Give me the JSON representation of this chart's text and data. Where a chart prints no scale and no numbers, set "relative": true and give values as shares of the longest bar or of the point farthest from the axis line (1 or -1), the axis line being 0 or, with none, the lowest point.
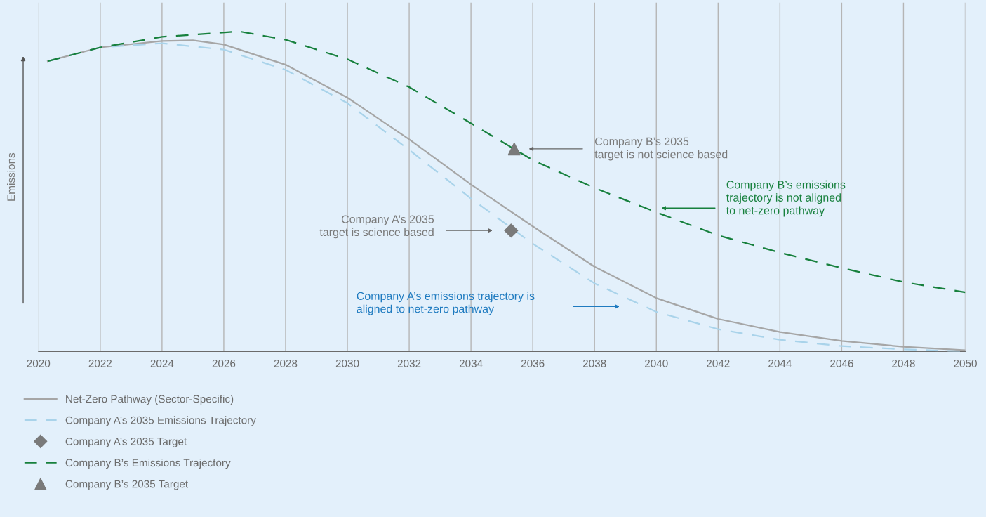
{
  "chart_data": {
    "type": "line",
    "relative": true,
    "ylabel": "Emissions",
    "xlim": [
      2020,
      2050
    ],
    "xticks": [
      2020,
      2022,
      2024,
      2026,
      2028,
      2030,
      2032,
      2034,
      2036,
      2038,
      2040,
      2042,
      2044,
      2046,
      2048,
      2050
    ],
    "grid": "x",
    "legend": "bottom",
    "series": [
      {
        "name": "Net-Zero Pathway (Sector-Specific)",
        "color": "#a6a6a6",
        "line_style": "solid",
        "x": [
          2020.3,
          2022,
          2024,
          2025,
          2026,
          2028,
          2030,
          2032,
          2034,
          2036,
          2038,
          2040,
          2042,
          2044,
          2046,
          2048,
          2050
        ],
        "values": [
          0.907,
          0.95,
          0.97,
          0.972,
          0.959,
          0.896,
          0.793,
          0.663,
          0.522,
          0.391,
          0.265,
          0.167,
          0.102,
          0.061,
          0.033,
          0.015,
          0.004
        ]
      },
      {
        "name": "Company A’s 2035 Emissions Trajectory",
        "color": "#a9d3ea",
        "line_style": "dashed",
        "x": [
          2020.3,
          2022,
          2024,
          2026,
          2028,
          2030,
          2032,
          2034,
          2036,
          2038,
          2040,
          2042,
          2044,
          2046,
          2048,
          2050
        ],
        "values": [
          0.907,
          0.95,
          0.963,
          0.943,
          0.88,
          0.776,
          0.63,
          0.478,
          0.337,
          0.213,
          0.124,
          0.07,
          0.037,
          0.017,
          0.007,
          0.0
        ]
      },
      {
        "name": "Company A’s 2035 Target",
        "type": "scatter",
        "marker": "diamond",
        "color": "#7a7a7a",
        "x": [
          2035.3
        ],
        "values": [
          0.378
        ]
      },
      {
        "name": "Company B’s Emissions Trajectory",
        "color": "#17803d",
        "line_style": "dashed",
        "x": [
          2020.3,
          2022,
          2024,
          2026.5,
          2028,
          2030,
          2032,
          2034,
          2036,
          2038,
          2040,
          2042,
          2044,
          2046,
          2048,
          2050
        ],
        "values": [
          0.907,
          0.95,
          0.983,
          1.0,
          0.974,
          0.913,
          0.826,
          0.713,
          0.598,
          0.511,
          0.435,
          0.363,
          0.309,
          0.261,
          0.217,
          0.185
        ]
      },
      {
        "name": "Company B’s 2035 Target",
        "type": "scatter",
        "marker": "triangle",
        "color": "#7a7a7a",
        "x": [
          2035.4
        ],
        "values": [
          0.633
        ]
      }
    ],
    "annotations": [
      "Company B’s 2035\ntarget is not science based",
      "Company B’s emissions\ntrajectory is not aligned\nto net-zero pathway",
      "Company A’s 2035\ntarget is science based",
      "Company A’s emissions trajectory is\naligned to net-zero pathway"
    ]
  }
}
